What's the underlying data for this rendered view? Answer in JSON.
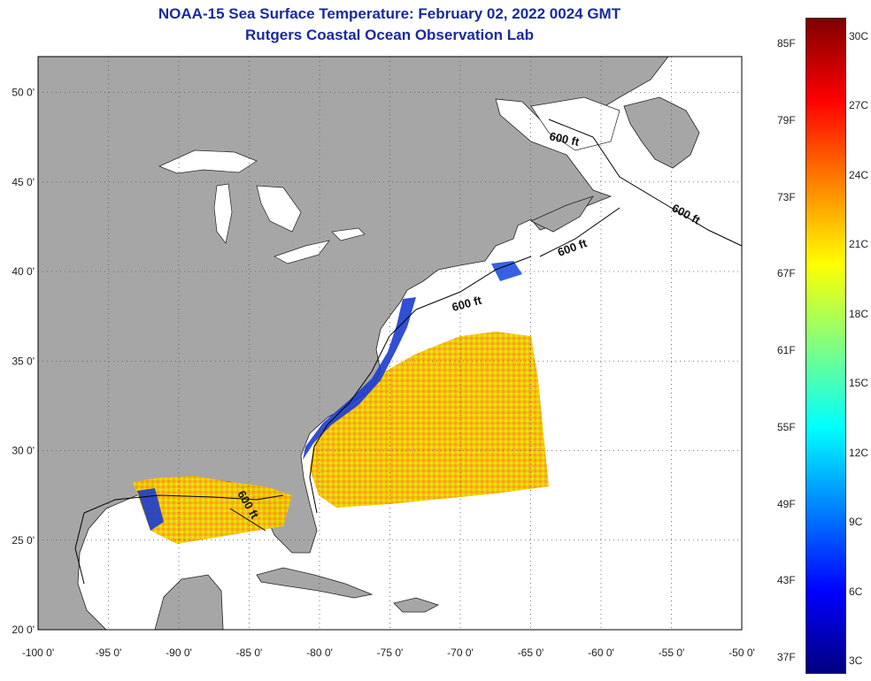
{
  "title": {
    "line1": "NOAA-15 Sea Surface Temperature:  February 02, 2022 0024 GMT",
    "line2": "Rutgers Coastal Ocean Observation Lab"
  },
  "map": {
    "lon_range": [
      -100,
      -50
    ],
    "lat_range": [
      20,
      52
    ],
    "lon_ticks": [
      -100,
      -95,
      -90,
      -85,
      -80,
      -75,
      -70,
      -65,
      -60,
      -55,
      -50
    ],
    "lat_ticks": [
      20,
      25,
      30,
      35,
      40,
      45,
      50
    ],
    "lon_tick_labels": [
      "-100 0'",
      "-95 0'",
      "-90 0'",
      "-85 0'",
      "-80 0'",
      "-75 0'",
      "-70 0'",
      "-65 0'",
      "-60 0'",
      "-55 0'",
      "-50 0'"
    ],
    "lat_tick_labels": [
      "20 0'",
      "25 0'",
      "30 0'",
      "35 0'",
      "40 0'",
      "45 0'",
      "50 0'"
    ],
    "gridlines": "dotted",
    "land_color": "#a6a6a6",
    "ocean_color": "#ffffff",
    "contour_label": "600 ft"
  },
  "colorbar": {
    "range_c": [
      3,
      31
    ],
    "range_f": [
      37,
      88
    ],
    "f_labels": [
      "85F",
      "79F",
      "73F",
      "67F",
      "61F",
      "55F",
      "49F",
      "43F",
      "37F"
    ],
    "c_labels": [
      "30C",
      "27C",
      "24C",
      "21C",
      "18C",
      "15C",
      "12C",
      "9C",
      "6C",
      "3C"
    ],
    "colors": [
      "#00007f",
      "#0000ff",
      "#0080ff",
      "#00ffff",
      "#80ff80",
      "#ffff00",
      "#ff8000",
      "#ff0000",
      "#7f0000"
    ]
  }
}
